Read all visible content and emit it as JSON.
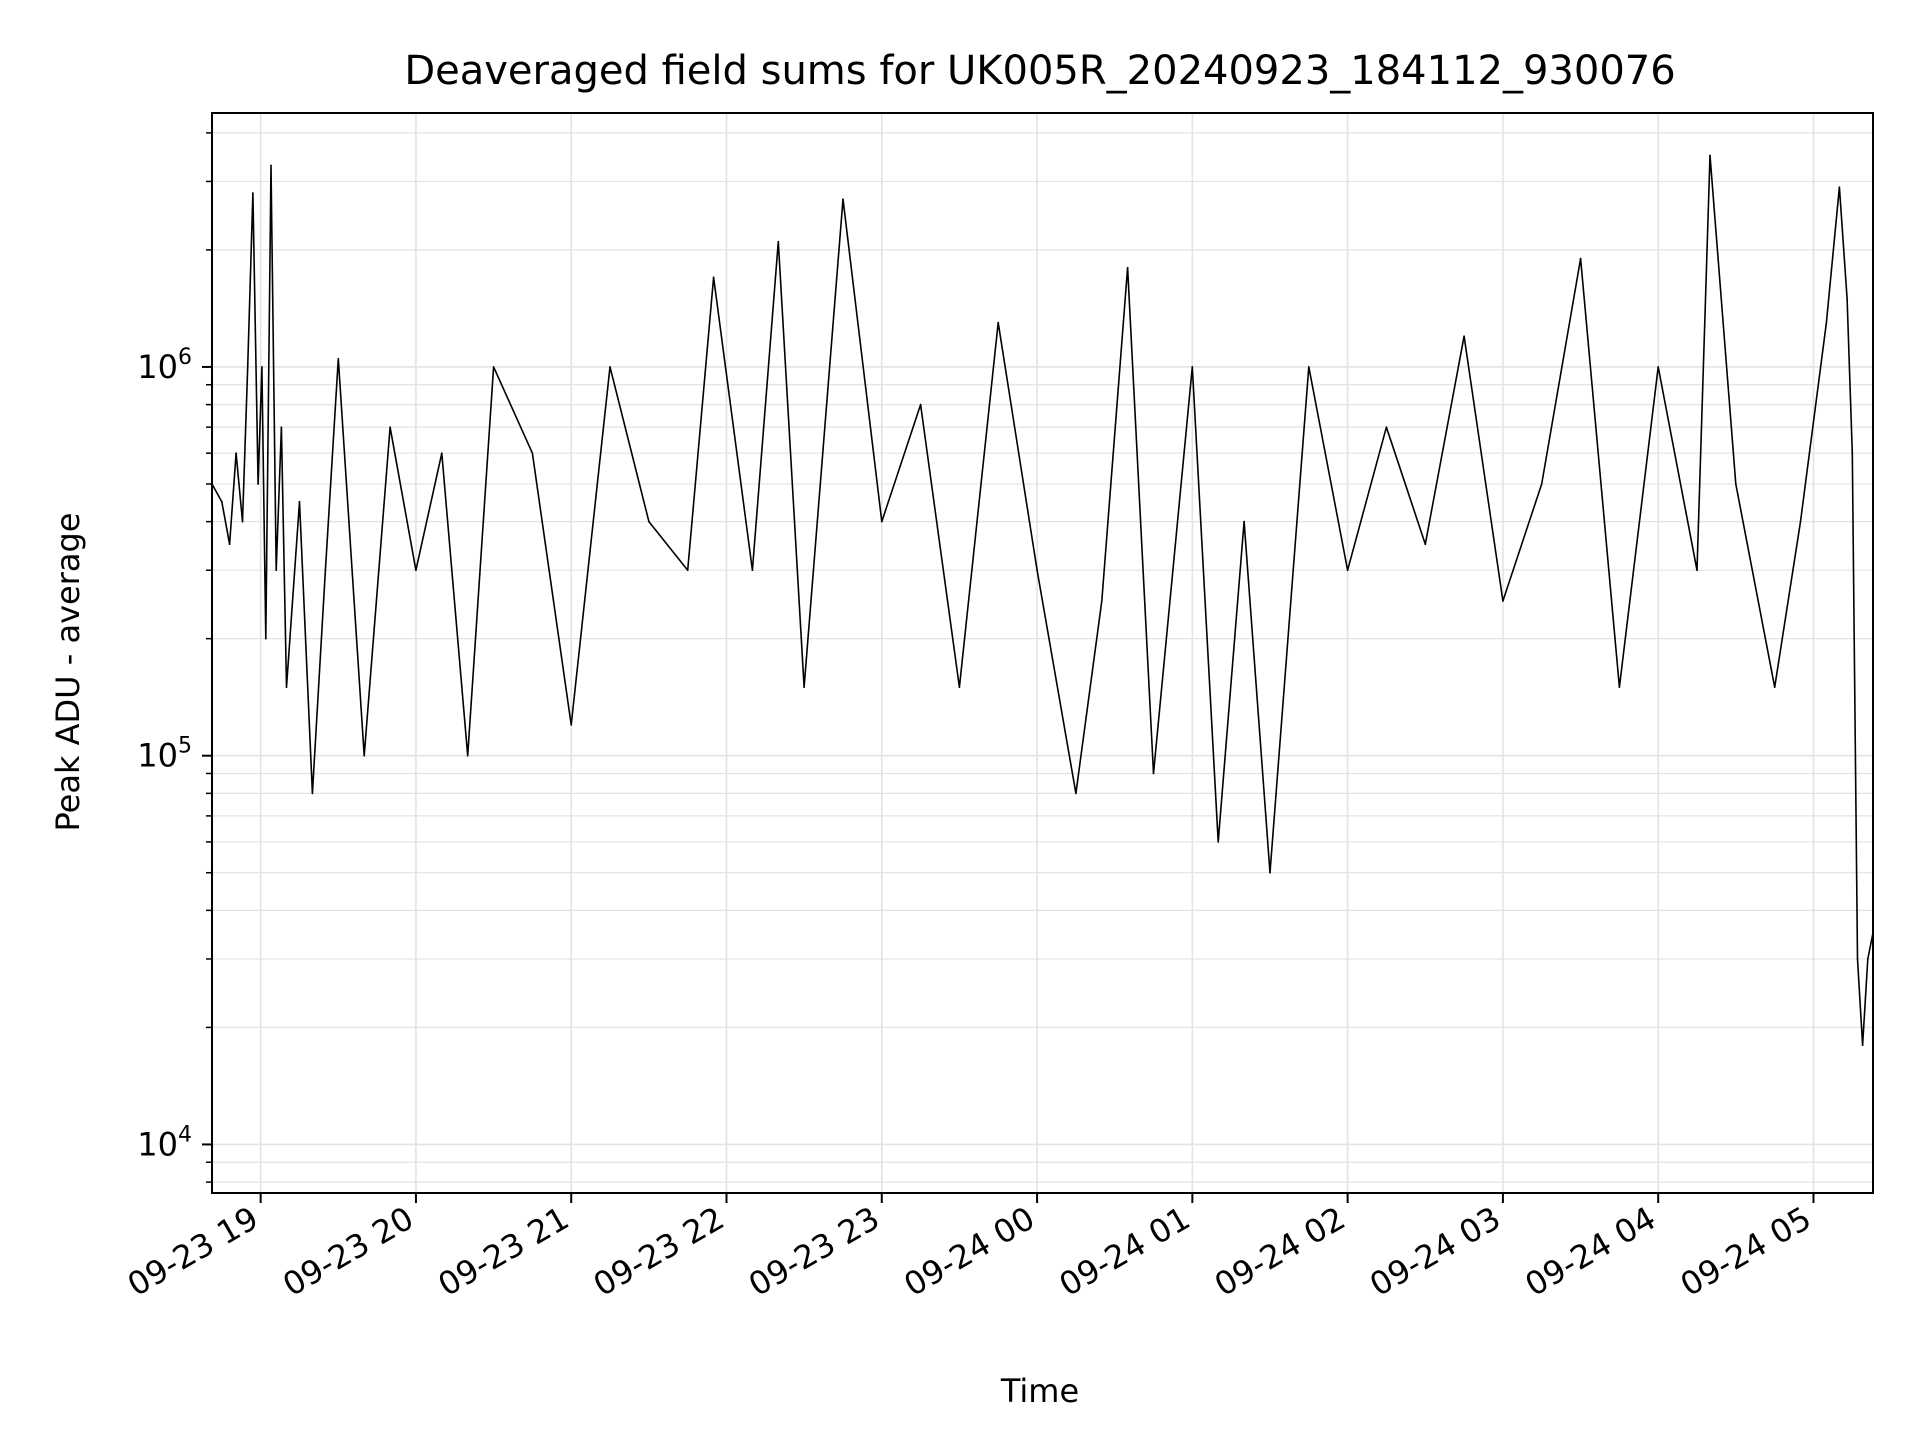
{
  "chart_data": {
    "type": "line",
    "title": "Deaveraged field sums for UK005R_20240923_184112_930076",
    "xlabel": "Time",
    "ylabel": "Peak ADU - average",
    "x_ticks": [
      "09-23 19",
      "09-23 20",
      "09-23 21",
      "09-23 22",
      "09-23 23",
      "09-24 00",
      "09-24 01",
      "09-24 02",
      "09-24 03",
      "09-24 04",
      "09-24 05"
    ],
    "y_ticks": [
      {
        "base": "10",
        "exp": "4",
        "value": 10000
      },
      {
        "base": "10",
        "exp": "5",
        "value": 100000
      },
      {
        "base": "10",
        "exp": "6",
        "value": 1000000
      }
    ],
    "xlim": [
      "2024-09-23T18:41:12",
      "2024-09-24T05:23:00"
    ],
    "ylim": [
      7500,
      4500000
    ],
    "y_scale": "log",
    "grid": true,
    "line_color": "#000000",
    "series": [
      {
        "x": [
          "2024-09-23T18:41:12",
          "2024-09-23T18:45:00",
          "2024-09-23T18:48:00",
          "2024-09-23T18:50:30",
          "2024-09-23T18:53:00",
          "2024-09-23T18:55:00",
          "2024-09-23T18:57:00",
          "2024-09-23T18:59:00",
          "2024-09-23T19:00:30",
          "2024-09-23T19:02:00",
          "2024-09-23T19:04:00",
          "2024-09-23T19:06:00",
          "2024-09-23T19:08:00",
          "2024-09-23T19:10:00",
          "2024-09-23T19:15:00",
          "2024-09-23T19:20:00",
          "2024-09-23T19:25:00",
          "2024-09-23T19:30:00",
          "2024-09-23T19:40:00",
          "2024-09-23T19:50:00",
          "2024-09-23T20:00:00",
          "2024-09-23T20:10:00",
          "2024-09-23T20:20:00",
          "2024-09-23T20:30:00",
          "2024-09-23T20:45:00",
          "2024-09-23T21:00:00",
          "2024-09-23T21:15:00",
          "2024-09-23T21:30:00",
          "2024-09-23T21:45:00",
          "2024-09-23T21:55:00",
          "2024-09-23T22:10:00",
          "2024-09-23T22:20:00",
          "2024-09-23T22:30:00",
          "2024-09-23T22:45:00",
          "2024-09-23T23:00:00",
          "2024-09-23T23:15:00",
          "2024-09-23T23:30:00",
          "2024-09-23T23:45:00",
          "2024-09-24T00:00:00",
          "2024-09-24T00:15:00",
          "2024-09-24T00:25:00",
          "2024-09-24T00:35:00",
          "2024-09-24T00:45:00",
          "2024-09-24T01:00:00",
          "2024-09-24T01:10:00",
          "2024-09-24T01:20:00",
          "2024-09-24T01:30:00",
          "2024-09-24T01:45:00",
          "2024-09-24T02:00:00",
          "2024-09-24T02:15:00",
          "2024-09-24T02:30:00",
          "2024-09-24T02:45:00",
          "2024-09-24T03:00:00",
          "2024-09-24T03:15:00",
          "2024-09-24T03:30:00",
          "2024-09-24T03:45:00",
          "2024-09-24T04:00:00",
          "2024-09-24T04:15:00",
          "2024-09-24T04:20:00",
          "2024-09-24T04:30:00",
          "2024-09-24T04:45:00",
          "2024-09-24T04:55:00",
          "2024-09-24T05:05:00",
          "2024-09-24T05:10:00",
          "2024-09-24T05:13:00",
          "2024-09-24T05:15:00",
          "2024-09-24T05:17:00",
          "2024-09-24T05:19:00",
          "2024-09-24T05:21:00",
          "2024-09-24T05:23:00"
        ],
        "y": [
          500000,
          450000,
          350000,
          600000,
          400000,
          1000000,
          2800000,
          500000,
          1000000,
          200000,
          3300000,
          300000,
          700000,
          150000,
          450000,
          80000,
          300000,
          1050000,
          100000,
          700000,
          300000,
          600000,
          100000,
          1000000,
          600000,
          120000,
          1000000,
          400000,
          300000,
          1700000,
          300000,
          2100000,
          150000,
          2700000,
          400000,
          800000,
          150000,
          1300000,
          300000,
          80000,
          250000,
          1800000,
          90000,
          1000000,
          60000,
          400000,
          50000,
          1000000,
          300000,
          700000,
          350000,
          1200000,
          250000,
          500000,
          1900000,
          150000,
          1000000,
          300000,
          3500000,
          500000,
          150000,
          400000,
          1300000,
          2900000,
          1500000,
          600000,
          30000,
          18000,
          30000,
          35000
        ]
      }
    ]
  }
}
